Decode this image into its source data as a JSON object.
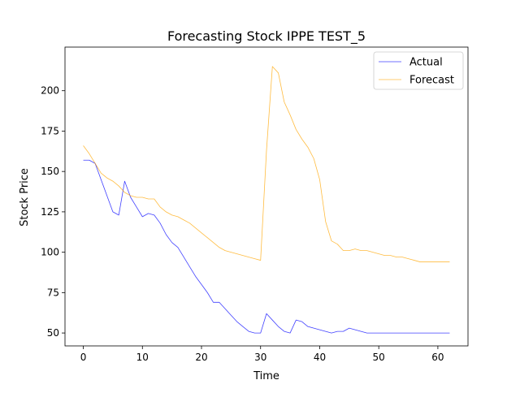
{
  "chart_data": {
    "type": "line",
    "title": "Forecasting Stock IPPE TEST_5",
    "xlabel": "Time",
    "ylabel": "Stock Price",
    "xlim": [
      -3.1,
      65.1
    ],
    "ylim": [
      42.0,
      227.0
    ],
    "xticks": [
      0,
      10,
      20,
      30,
      40,
      50,
      60
    ],
    "yticks": [
      50,
      75,
      100,
      125,
      150,
      175,
      200
    ],
    "grid": false,
    "legend_position": "top-right",
    "series": [
      {
        "name": "Actual",
        "color": "#0000ff",
        "x": [
          0,
          1,
          2,
          3,
          4,
          5,
          6,
          7,
          8,
          9,
          10,
          11,
          12,
          13,
          14,
          15,
          16,
          17,
          18,
          19,
          20,
          21,
          22,
          23,
          24,
          25,
          26,
          27,
          28,
          29,
          30,
          31,
          32,
          33,
          34,
          35,
          36,
          37,
          38,
          39,
          40,
          41,
          42,
          43,
          44,
          45,
          46,
          47,
          48,
          49,
          50,
          51,
          52,
          53,
          54,
          55,
          56,
          57,
          58,
          59,
          60,
          61,
          62
        ],
        "values": [
          157,
          157,
          155,
          145,
          135,
          125,
          123,
          144,
          134,
          128,
          122,
          124,
          123,
          118,
          111,
          106,
          103,
          97,
          91,
          85,
          80,
          75,
          69,
          69,
          65,
          61,
          57,
          54,
          51,
          50,
          50,
          62,
          58,
          54,
          51,
          50,
          58,
          57,
          54,
          53,
          52,
          51,
          50,
          51,
          51,
          53,
          52,
          51,
          50,
          50,
          50,
          50,
          50,
          50,
          50,
          50,
          50,
          50,
          50,
          50,
          50,
          50,
          50
        ]
      },
      {
        "name": "Forecast",
        "color": "#ffa500",
        "x": [
          0,
          1,
          2,
          3,
          4,
          5,
          6,
          7,
          8,
          9,
          10,
          11,
          12,
          13,
          14,
          15,
          16,
          17,
          18,
          19,
          20,
          21,
          22,
          23,
          24,
          25,
          26,
          27,
          28,
          29,
          30,
          31,
          32,
          33,
          34,
          35,
          36,
          37,
          38,
          39,
          40,
          41,
          42,
          43,
          44,
          45,
          46,
          47,
          48,
          49,
          50,
          51,
          52,
          53,
          54,
          55,
          56,
          57,
          58,
          59,
          60,
          61,
          62
        ],
        "values": [
          166,
          161,
          155,
          149,
          146,
          144,
          141,
          137,
          135,
          134,
          134,
          133,
          133,
          128,
          125,
          123,
          122,
          120,
          118,
          115,
          112,
          109,
          106,
          103,
          101,
          100,
          99,
          98,
          97,
          96,
          95,
          163,
          215,
          211,
          193,
          185,
          176,
          170,
          165,
          158,
          145,
          119,
          107,
          105,
          101,
          101,
          102,
          101,
          101,
          100,
          99,
          98,
          98,
          97,
          97,
          96,
          95,
          94,
          94,
          94,
          94,
          94,
          94
        ]
      }
    ]
  }
}
